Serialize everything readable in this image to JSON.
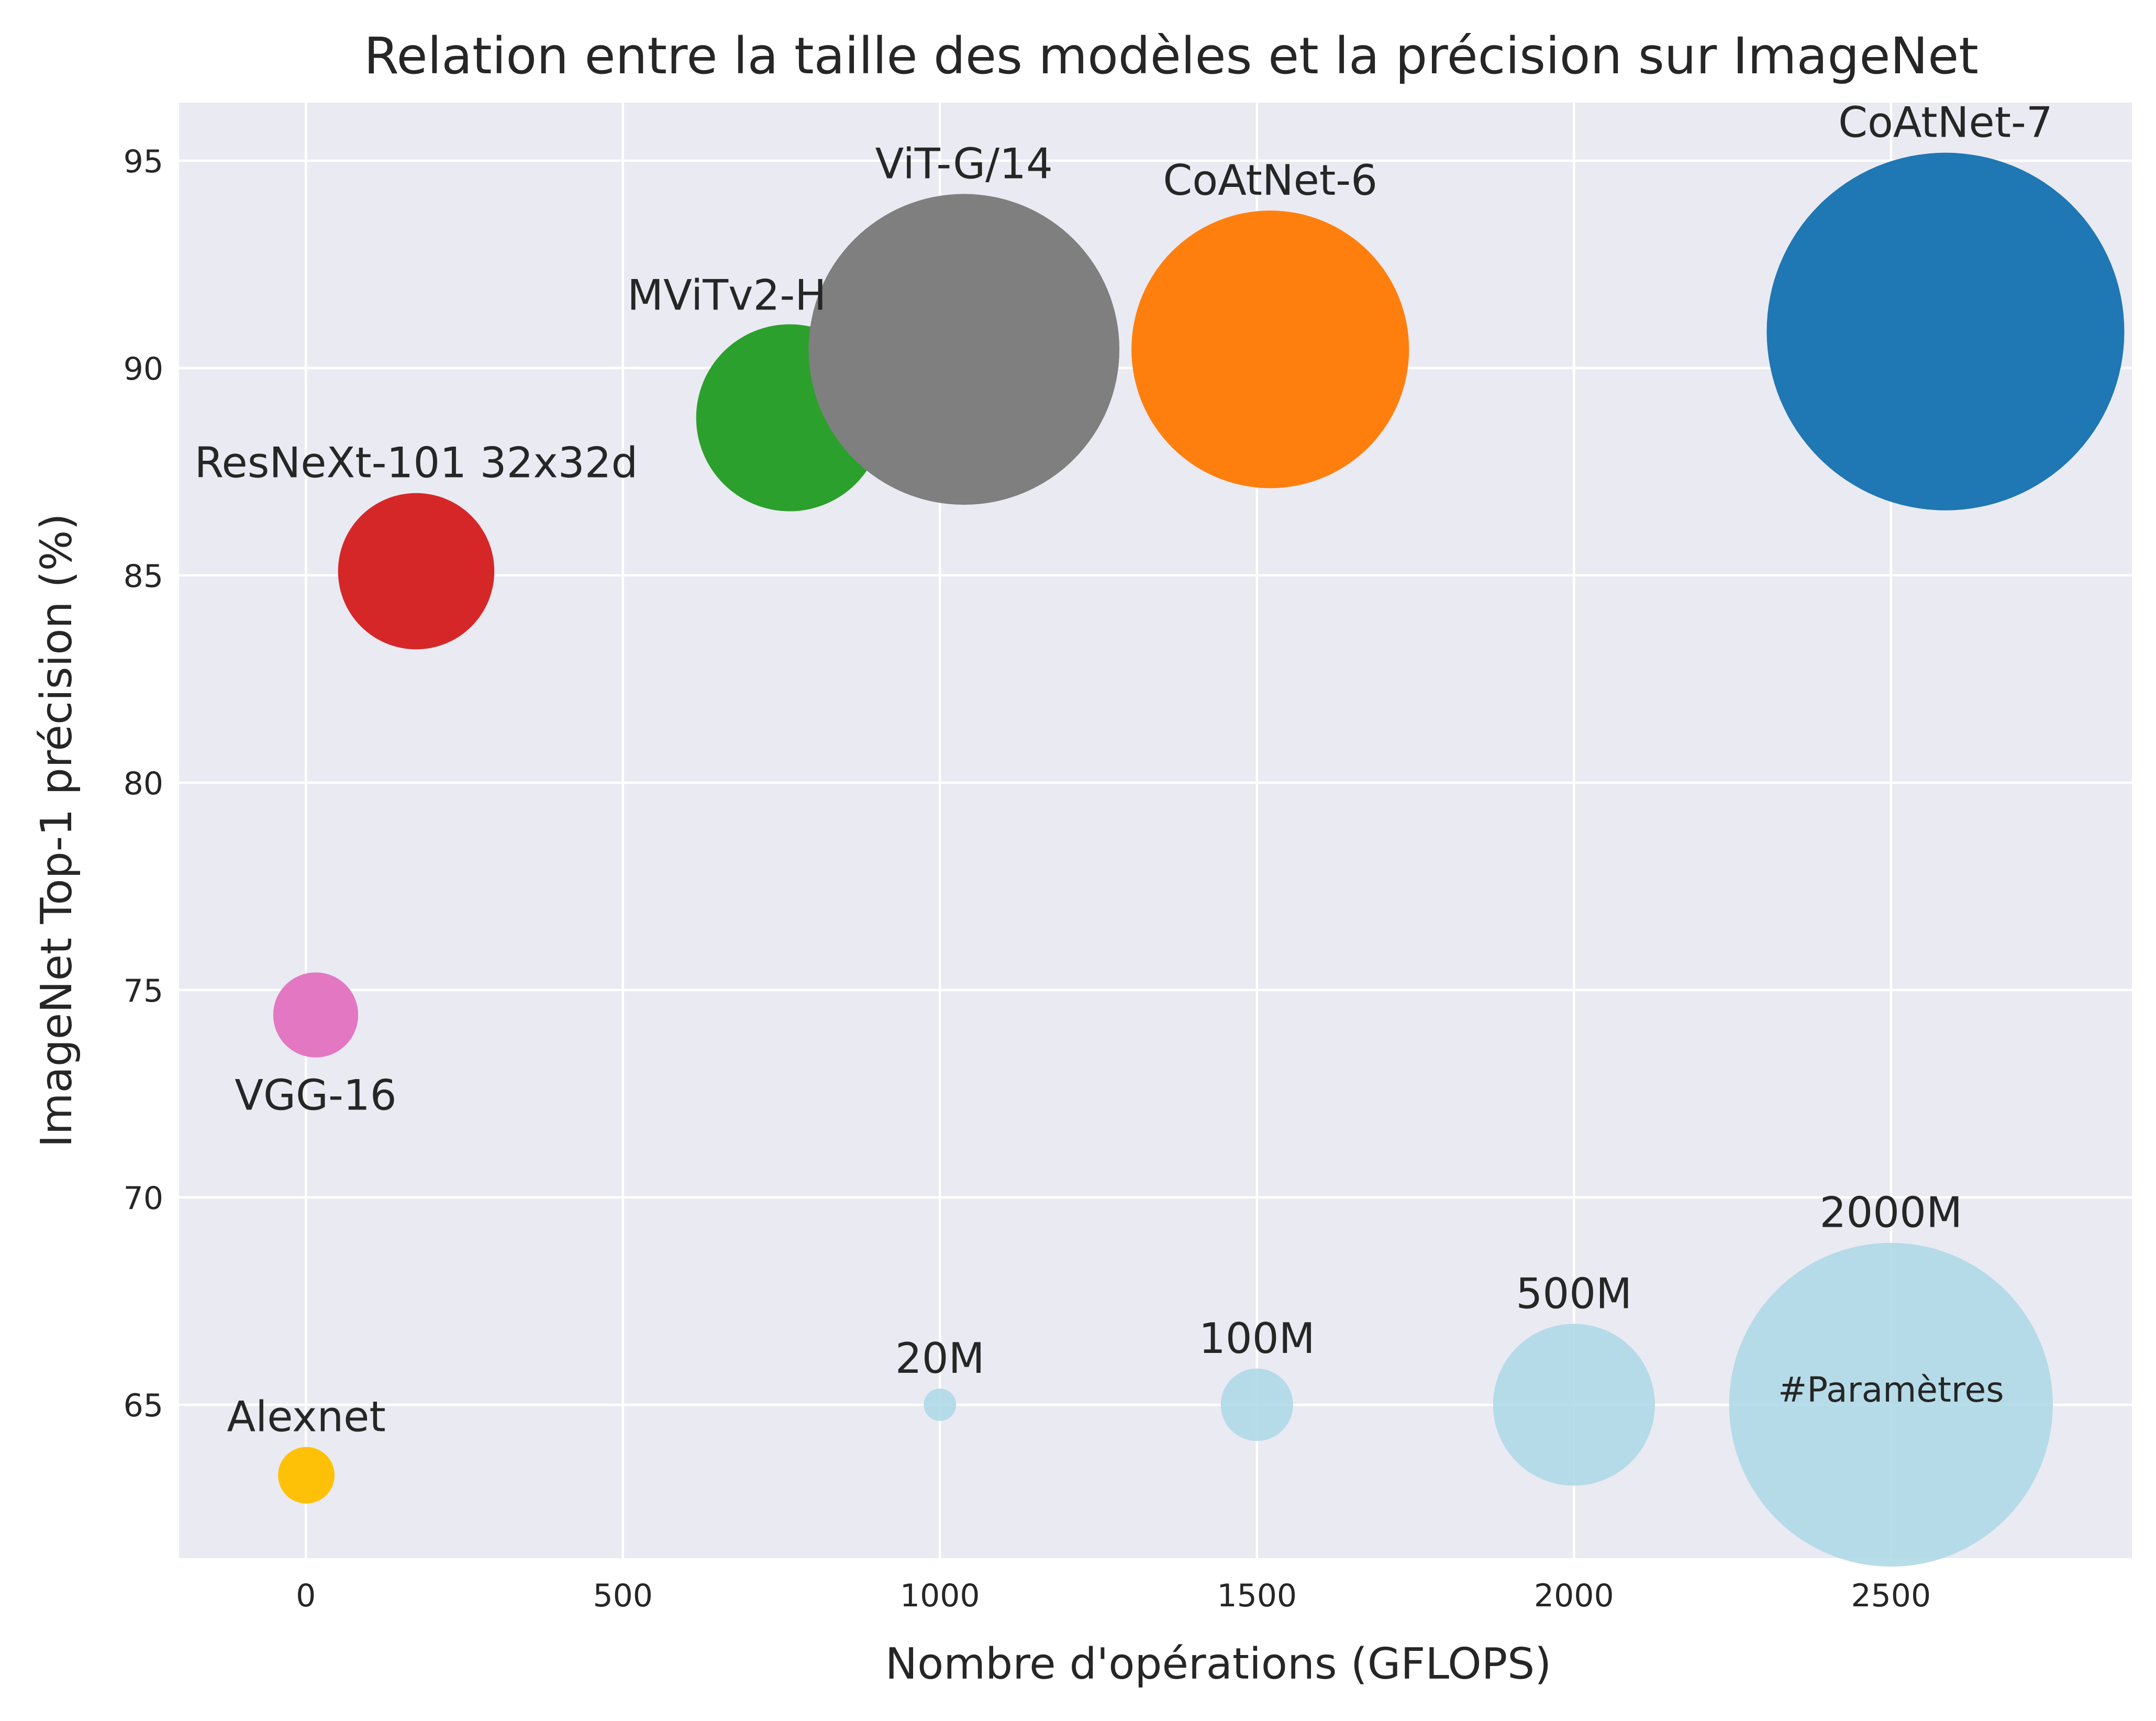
{
  "chart_data": {
    "type": "scatter",
    "title": "Relation entre la taille des modèles et la précision sur ImageNet",
    "xlabel": "Nombre d'opérations (GFLOPS)",
    "ylabel": "ImageNet Top-1 précision (%)",
    "xlim": [
      -200,
      2880
    ],
    "ylim": [
      61.3,
      96.4
    ],
    "xticks": [
      0,
      500,
      1000,
      1500,
      2000,
      2500
    ],
    "yticks": [
      65,
      70,
      75,
      80,
      85,
      90,
      95
    ],
    "grid": true,
    "points": [
      {
        "label": "Alexnet",
        "x": 0.7,
        "y": 63.3,
        "params_m": 61,
        "color": "#ffc107",
        "label_pos": "above"
      },
      {
        "label": "VGG-16",
        "x": 15.5,
        "y": 74.4,
        "params_m": 138,
        "color": "#e377c2",
        "label_pos": "below"
      },
      {
        "label": "ResNeXt-101 32x32d",
        "x": 174,
        "y": 85.1,
        "params_m": 466,
        "color": "#d62728",
        "label_pos": "above"
      },
      {
        "label": "MViTv2-H",
        "x": 763,
        "y": 88.8,
        "params_m": 667,
        "color": "#2ca02c",
        "label_pos": "above-left"
      },
      {
        "label": "ViT-G/14",
        "x": 1038,
        "y": 90.45,
        "params_m": 1843,
        "color": "#7f7f7f",
        "label_pos": "above"
      },
      {
        "label": "CoAtNet-6",
        "x": 1521,
        "y": 90.45,
        "params_m": 1470,
        "color": "#ff7f0e",
        "label_pos": "above"
      },
      {
        "label": "CoAtNet-7",
        "x": 2586,
        "y": 90.88,
        "params_m": 2440,
        "color": "#1f77b4",
        "label_pos": "above"
      }
    ],
    "size_legend": {
      "caption": "#Paramètres",
      "color": "#add8e6",
      "y": 65,
      "entries": [
        {
          "label": "20M",
          "x": 1000,
          "params_m": 20
        },
        {
          "label": "100M",
          "x": 1500,
          "params_m": 100
        },
        {
          "label": "500M",
          "x": 2000,
          "params_m": 500
        },
        {
          "label": "2000M",
          "x": 2500,
          "params_m": 2000
        }
      ]
    }
  }
}
